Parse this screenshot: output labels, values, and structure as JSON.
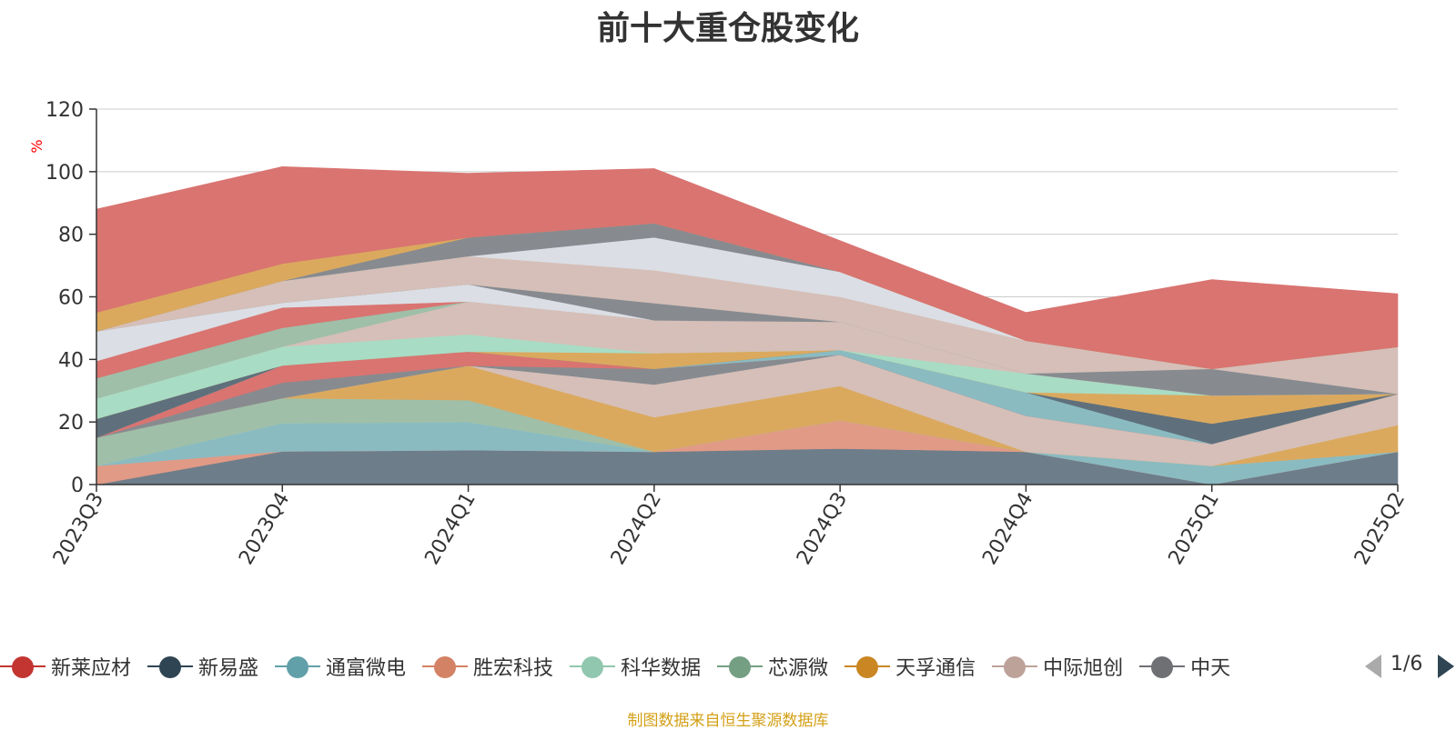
{
  "title": "前十大重仓股变化",
  "source_note": "制图数据来自恒生聚源数据库",
  "legend": {
    "items": [
      {
        "label": "新莱应材",
        "color": "#c23531"
      },
      {
        "label": "新易盛",
        "color": "#2f4554"
      },
      {
        "label": "通富微电",
        "color": "#61a0a8"
      },
      {
        "label": "胜宏科技",
        "color": "#d48265"
      },
      {
        "label": "科华数据",
        "color": "#91c7ae"
      },
      {
        "label": "芯源微",
        "color": "#749f83"
      },
      {
        "label": "天孚通信",
        "color": "#ca8622"
      },
      {
        "label": "中际旭创",
        "color": "#bda29a"
      },
      {
        "label": "中天",
        "color": "#6e7074"
      }
    ],
    "page": "1/6"
  },
  "chart_data": {
    "type": "area",
    "stacked": true,
    "categories": [
      "2023Q3",
      "2023Q4",
      "2024Q1",
      "2024Q2",
      "2024Q3",
      "2024Q4",
      "2025Q1",
      "2025Q2"
    ],
    "ylabel": "%",
    "ylim": [
      0,
      120
    ],
    "yticks": [
      0,
      20,
      40,
      60,
      80,
      100,
      120
    ],
    "grid": true,
    "legend_position": "bottom",
    "series": [
      {
        "name": "",
        "color": "#6e7d8a",
        "values": [
          0,
          10.6,
          11,
          10.5,
          11.5,
          10.5,
          0,
          10.5
        ]
      },
      {
        "name": "",
        "color": "#e19a86",
        "values": [
          6,
          0,
          0,
          0,
          9,
          0,
          0,
          0
        ]
      },
      {
        "name": "",
        "color": "#8abbc1",
        "values": [
          0,
          9,
          9,
          0,
          0,
          0,
          6,
          0
        ]
      },
      {
        "name": "",
        "color": "#a9dcc4",
        "values": [
          0,
          0,
          0,
          0,
          0,
          0,
          0,
          0
        ]
      },
      {
        "name": "",
        "color": "#9fbfa8",
        "values": [
          9,
          8,
          7,
          0,
          0,
          0,
          0,
          0
        ]
      },
      {
        "name": "",
        "color": "#dba95e",
        "values": [
          0,
          0,
          11,
          11,
          11,
          0,
          0,
          8.5
        ]
      },
      {
        "name": "",
        "color": "#d5bfb8",
        "values": [
          0,
          0,
          0,
          10.5,
          10,
          11.5,
          7,
          10
        ]
      },
      {
        "name": "",
        "color": "#878b90",
        "values": [
          0,
          5,
          0,
          5,
          0,
          0,
          0,
          0
        ]
      },
      {
        "name": "",
        "color": "#d97471",
        "values": [
          0,
          5.5,
          4.5,
          0,
          0,
          0,
          0,
          0
        ]
      },
      {
        "name": "",
        "color": "#8abbc1",
        "values": [
          0,
          0,
          0,
          0,
          1.5,
          7.5,
          0,
          0
        ]
      },
      {
        "name": "",
        "color": "#5f707c",
        "values": [
          6,
          0,
          0,
          0,
          0,
          0,
          6.5,
          0
        ]
      },
      {
        "name": "",
        "color": "#dba95e",
        "values": [
          0,
          0,
          0,
          5,
          0,
          0,
          9,
          0
        ]
      },
      {
        "name": "",
        "color": "#a9dcc4",
        "values": [
          6.5,
          6,
          5.5,
          0,
          0,
          6,
          0,
          0
        ]
      },
      {
        "name": "",
        "color": "#d5bfb8",
        "values": [
          0,
          0,
          10.5,
          10.5,
          9,
          0,
          0,
          0
        ]
      },
      {
        "name": "",
        "color": "#9fbfa8",
        "values": [
          6.5,
          6,
          0,
          0,
          0,
          0,
          0,
          0
        ]
      },
      {
        "name": "",
        "color": "#d97471",
        "values": [
          5.5,
          6.5,
          0,
          0,
          0,
          0,
          0,
          0
        ]
      },
      {
        "name": "",
        "color": "#dbdee4",
        "values": [
          9.5,
          1.5,
          5.5,
          0,
          0,
          0,
          0,
          0
        ]
      },
      {
        "name": "",
        "color": "#878b90",
        "values": [
          0,
          0,
          0,
          5.5,
          0,
          0,
          8.5,
          0
        ]
      },
      {
        "name": "",
        "color": "#d5bfb8",
        "values": [
          0,
          7,
          9,
          10.5,
          8,
          10.5,
          0,
          15
        ]
      },
      {
        "name": "",
        "color": "#dbdee4",
        "values": [
          0,
          0,
          0,
          10.5,
          8,
          0,
          0,
          0
        ]
      },
      {
        "name": "",
        "color": "#878b90",
        "values": [
          0,
          0,
          6,
          4.5,
          0,
          0,
          0,
          0
        ]
      },
      {
        "name": "",
        "color": "#dba95e",
        "values": [
          6,
          5.5,
          0,
          0,
          0,
          0,
          0,
          0
        ]
      },
      {
        "name": "",
        "color": "#d97471",
        "values": [
          33,
          31,
          20.5,
          17.5,
          10,
          9,
          28.5,
          17
        ]
      }
    ]
  }
}
